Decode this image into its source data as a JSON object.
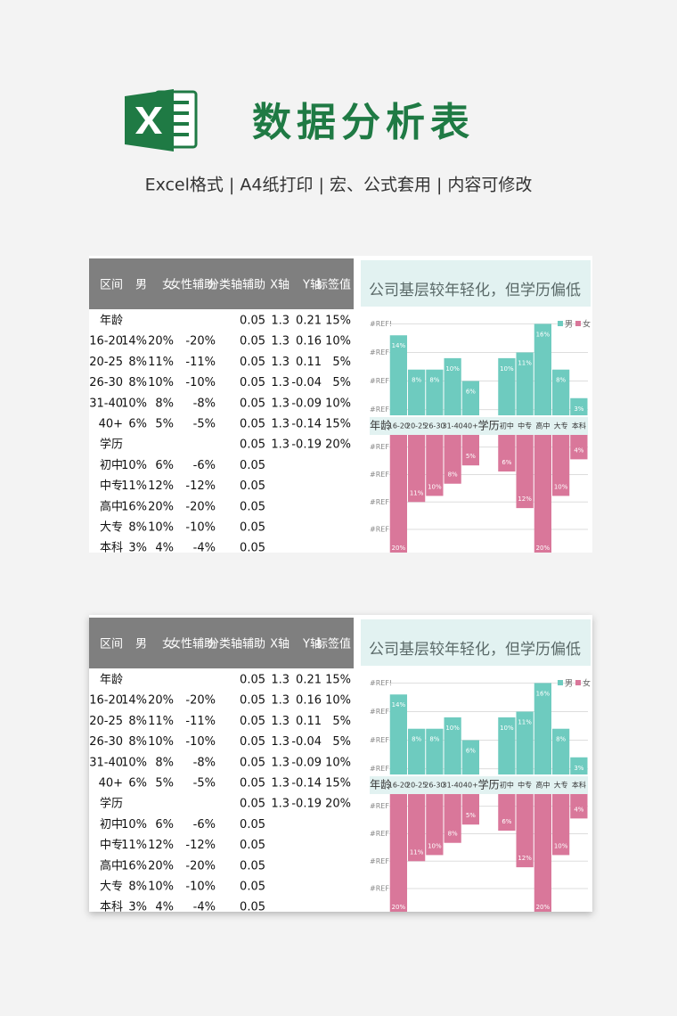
{
  "header": {
    "title": "数据分析表",
    "subtitle": "Excel格式 | A4纸打印 | 宏、公式套用 | 内容可修改"
  },
  "table": {
    "columns": [
      "区间",
      "男",
      "女",
      "女性辅助",
      "分类轴辅助",
      "X轴",
      "Y轴",
      "标签值"
    ],
    "rows": [
      [
        "年龄",
        null,
        null,
        null,
        "0.05",
        "1.3",
        "0.21",
        "15%"
      ],
      [
        "16-20",
        "14%",
        "20%",
        "-20%",
        "0.05",
        "1.3",
        "0.16",
        "10%"
      ],
      [
        "20-25",
        "8%",
        "11%",
        "-11%",
        "0.05",
        "1.3",
        "0.11",
        "5%"
      ],
      [
        "26-30",
        "8%",
        "10%",
        "-10%",
        "0.05",
        "1.3",
        "-0.04",
        "5%"
      ],
      [
        "31-40",
        "10%",
        "8%",
        "-8%",
        "0.05",
        "1.3",
        "-0.09",
        "10%"
      ],
      [
        "40+",
        "6%",
        "5%",
        "-5%",
        "0.05",
        "1.3",
        "-0.14",
        "15%"
      ],
      [
        "学历",
        null,
        null,
        null,
        "0.05",
        "1.3",
        "-0.19",
        "20%"
      ],
      [
        "初中",
        "10%",
        "6%",
        "-6%",
        "0.05"
      ],
      [
        "中专",
        "11%",
        "12%",
        "-12%",
        "0.05"
      ],
      [
        "高中",
        "16%",
        "20%",
        "-20%",
        "0.05"
      ],
      [
        "大专",
        "8%",
        "10%",
        "-10%",
        "0.05"
      ],
      [
        "本科",
        "3%",
        "4%",
        "-4%",
        "0.05"
      ]
    ]
  },
  "chart_data": {
    "type": "bar",
    "title": "公司基层较年轻化，但学历偏低",
    "categories": [
      "年龄",
      "16-20",
      "20-25",
      "26-30",
      "31-40",
      "40+",
      "学历",
      "初中",
      "中专",
      "高中",
      "大专",
      "本科"
    ],
    "series": [
      {
        "name": "男",
        "color": "#6ecbbf",
        "values": [
          null,
          14,
          8,
          8,
          10,
          6,
          null,
          10,
          11,
          16,
          8,
          3
        ],
        "value_labels": [
          null,
          "14%",
          "8%",
          "8%",
          "10%",
          "6%",
          null,
          "10%",
          "11%",
          "16%",
          "8%",
          "3%"
        ]
      },
      {
        "name": "女",
        "color": "#d9779a",
        "axis": "y2",
        "values": [
          null,
          20,
          11,
          10,
          8,
          5,
          null,
          6,
          12,
          20,
          10,
          4
        ],
        "value_labels": [
          null,
          "20%",
          "11%",
          "10%",
          "8%",
          "5%",
          null,
          "6%",
          "12%",
          "20%",
          "10%",
          "4%"
        ]
      }
    ],
    "ylim": [
      0,
      17
    ],
    "yticks": [
      {
        "value": 1,
        "label": "#REF!"
      },
      {
        "value": 6,
        "label": "#REF!"
      },
      {
        "value": 11,
        "label": "#REF!"
      },
      {
        "value": 16,
        "label": "#REF!"
      }
    ],
    "y2lim": [
      0,
      19
    ],
    "y2ticks": [
      {
        "value": 2,
        "label": "#REF!"
      },
      {
        "value": 6.5,
        "label": "#REF!"
      },
      {
        "value": 11,
        "label": "#REF!"
      },
      {
        "value": 15.5,
        "label": "#REF!"
      }
    ],
    "grid": true,
    "legend": "top-right"
  }
}
